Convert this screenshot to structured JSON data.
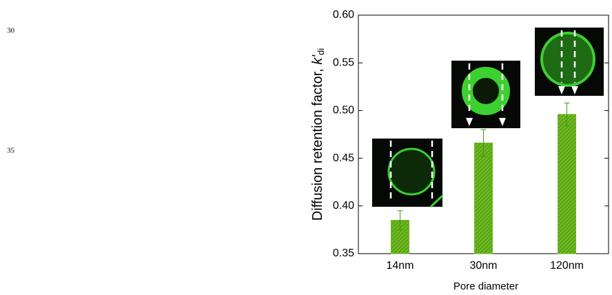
{
  "line_numbers": [
    "30",
    "35"
  ],
  "chart_data": {
    "type": "bar",
    "ylabel": "Diffusion retention factor, ",
    "ylabel_symbol": "k'",
    "ylabel_subscript": "di",
    "xlabel": "Pore diameter",
    "categories": [
      "14nm",
      "30nm",
      "120nm"
    ],
    "values": [
      0.385,
      0.466,
      0.496
    ],
    "errors": [
      0.01,
      0.014,
      0.012
    ],
    "color": "#6cb820",
    "ylim": [
      0.35,
      0.6
    ],
    "yticks": [
      0.35,
      {
        "value": 0.4,
        "label": "0.40"
      },
      0.45,
      {
        "value": 0.5,
        "label": "0.50"
      },
      0.55,
      {
        "value": 0.6,
        "label": "0.60"
      }
    ]
  }
}
